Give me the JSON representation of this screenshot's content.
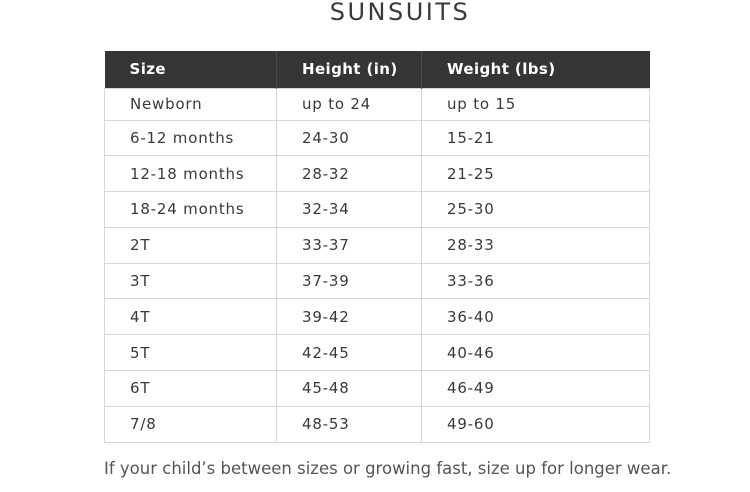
{
  "page": {
    "title": "SUNSUITS",
    "footnote": "If your child’s between sizes or growing fast, size up for longer wear."
  },
  "table": {
    "headers": [
      "Size",
      "Height (in)",
      "Weight (lbs)"
    ],
    "rows": [
      [
        "Newborn",
        "up to 24",
        "up to 15"
      ],
      [
        "6-12 months",
        "24-30",
        "15-21"
      ],
      [
        "12-18 months",
        "28-32",
        "21-25"
      ],
      [
        "18-24 months",
        "32-34",
        "25-30"
      ],
      [
        "2T",
        "33-37",
        "28-33"
      ],
      [
        "3T",
        "37-39",
        "33-36"
      ],
      [
        "4T",
        "39-42",
        "36-40"
      ],
      [
        "5T",
        "42-45",
        "40-46"
      ],
      [
        "6T",
        "45-48",
        "46-49"
      ],
      [
        "7/8",
        "48-53",
        "49-60"
      ]
    ]
  },
  "colors": {
    "header_bg": "#353535",
    "header_text": "#ffffff",
    "border": "#d6d6d6",
    "text": "#3a3a3a"
  }
}
